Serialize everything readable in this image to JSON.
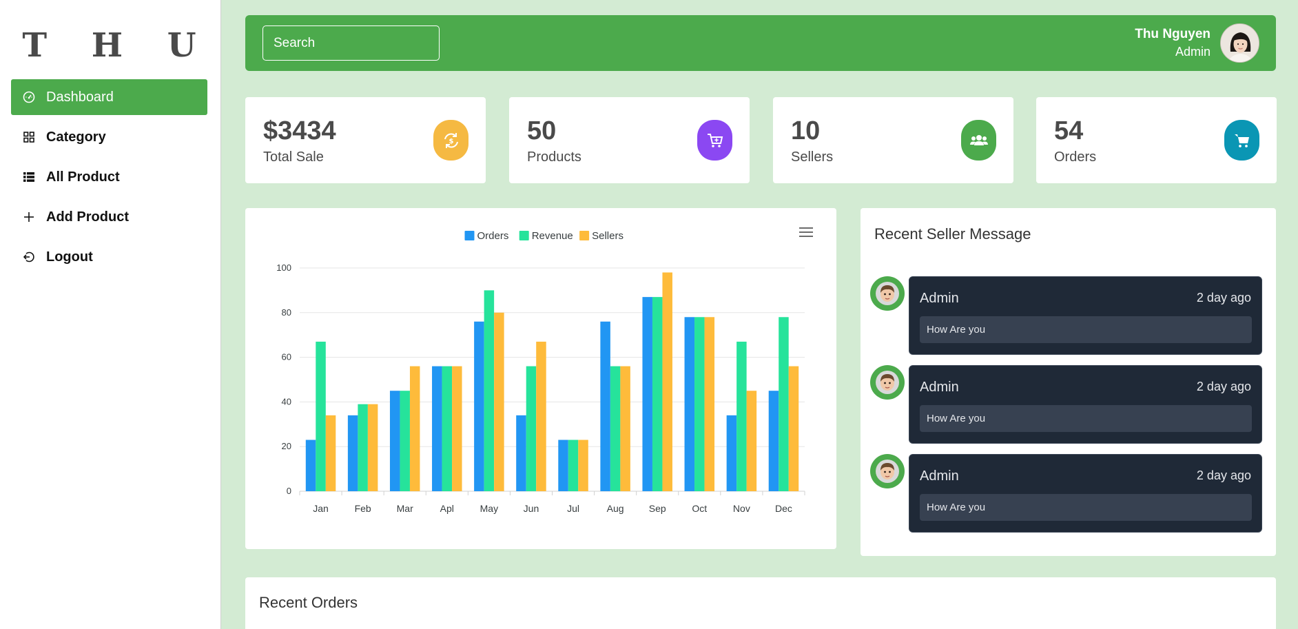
{
  "sidebar": {
    "logo": "T H U",
    "items": [
      {
        "label": "Dashboard",
        "icon": "gauge-icon",
        "active": true
      },
      {
        "label": "Category",
        "icon": "grid-icon",
        "active": false
      },
      {
        "label": "All Product",
        "icon": "list-icon",
        "active": false
      },
      {
        "label": "Add Product",
        "icon": "plus-icon",
        "active": false
      },
      {
        "label": "Logout",
        "icon": "logout-icon",
        "active": false
      }
    ]
  },
  "header": {
    "search_placeholder": "Search",
    "user_name": "Thu Nguyen",
    "user_role": "Admin"
  },
  "stats": [
    {
      "value": "$3434",
      "label": "Total Sale",
      "icon": "sync-dollar-icon",
      "color": "#f5b942"
    },
    {
      "value": "50",
      "label": "Products",
      "icon": "cart-plus-icon",
      "color": "#8b48f2"
    },
    {
      "value": "10",
      "label": "Sellers",
      "icon": "users-icon",
      "color": "#4caa4c"
    },
    {
      "value": "54",
      "label": "Orders",
      "icon": "cart-icon",
      "color": "#0a96b4"
    }
  ],
  "chart_data": {
    "type": "bar",
    "categories": [
      "Jan",
      "Feb",
      "Mar",
      "Apl",
      "May",
      "Jun",
      "Jul",
      "Aug",
      "Sep",
      "Oct",
      "Nov",
      "Dec"
    ],
    "series": [
      {
        "name": "Orders",
        "color": "#2196f3",
        "values": [
          23,
          34,
          45,
          56,
          76,
          34,
          23,
          76,
          87,
          78,
          34,
          45
        ]
      },
      {
        "name": "Revenue",
        "color": "#26e39b",
        "values": [
          67,
          39,
          45,
          56,
          90,
          56,
          23,
          56,
          87,
          78,
          67,
          78
        ]
      },
      {
        "name": "Sellers",
        "color": "#febb3b",
        "values": [
          34,
          39,
          56,
          56,
          80,
          67,
          23,
          56,
          98,
          78,
          45,
          56
        ]
      }
    ],
    "ylim": [
      0,
      100
    ],
    "yticks": [
      0,
      20,
      40,
      60,
      80,
      100
    ],
    "legend": "top-center",
    "grid": true
  },
  "messages": {
    "title": "Recent Seller Message",
    "items": [
      {
        "from": "Admin",
        "time": "2 day ago",
        "text": "How Are you"
      },
      {
        "from": "Admin",
        "time": "2 day ago",
        "text": "How Are you"
      },
      {
        "from": "Admin",
        "time": "2 day ago",
        "text": "How Are you"
      }
    ]
  },
  "orders": {
    "title": "Recent Orders"
  }
}
